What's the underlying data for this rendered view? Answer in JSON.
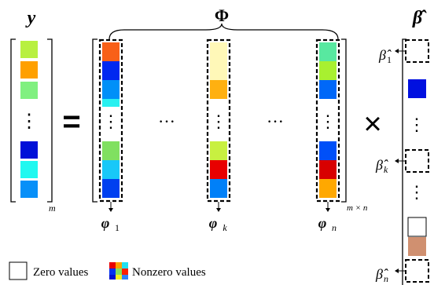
{
  "labels": {
    "y": "y",
    "phi": "Φ",
    "beta_hat": "β̂",
    "equals": "=",
    "times": "×",
    "ellipsis_h": "···",
    "ellipsis_v": "⋮",
    "m_sub": "m",
    "mxn_sub": "m × n"
  },
  "columns": [
    {
      "name": "φ",
      "sub": "1"
    },
    {
      "name": "φ",
      "sub": "k"
    },
    {
      "name": "φ",
      "sub": "n"
    }
  ],
  "beta_labels": [
    {
      "name": "β̂",
      "sub": "1"
    },
    {
      "name": "β̂",
      "sub": "k"
    },
    {
      "name": "β̂",
      "sub": "n"
    }
  ],
  "legend": {
    "zero": "Zero values",
    "nonzero": "Nonzero values"
  },
  "colors": {
    "y_vector": [
      "#b8f040",
      "#ffa000",
      "#80f080",
      "#0010d8",
      "#20f8f0",
      "#0890f8"
    ],
    "col1": [
      "#f86018",
      "#0028f0",
      "#0090f8",
      "#28f0f0",
      "#80e060",
      "#18c8f8",
      "#0040f0"
    ],
    "colk": [
      "#fff8b8",
      "#fff8b8",
      "#ffb010",
      "#c8f040",
      "#e80000",
      "#0080f8"
    ],
    "coln": [
      "#58e8a0",
      "#a8f030",
      "#0068f8",
      "#0050f8",
      "#d80000",
      "#ffa800"
    ],
    "beta": [
      "#ffffff",
      "#ffffff",
      "#0010e0",
      "#ffffff",
      "#ffffff",
      "#ffffff",
      "#d09070",
      "#ffffff"
    ],
    "legend_mosaic": [
      "#e80000",
      "#ffa000",
      "#20e0f0",
      "#0030f0",
      "#80e060",
      "#ff2000",
      "#0010d0",
      "#f8f020",
      "#3080f8"
    ]
  }
}
